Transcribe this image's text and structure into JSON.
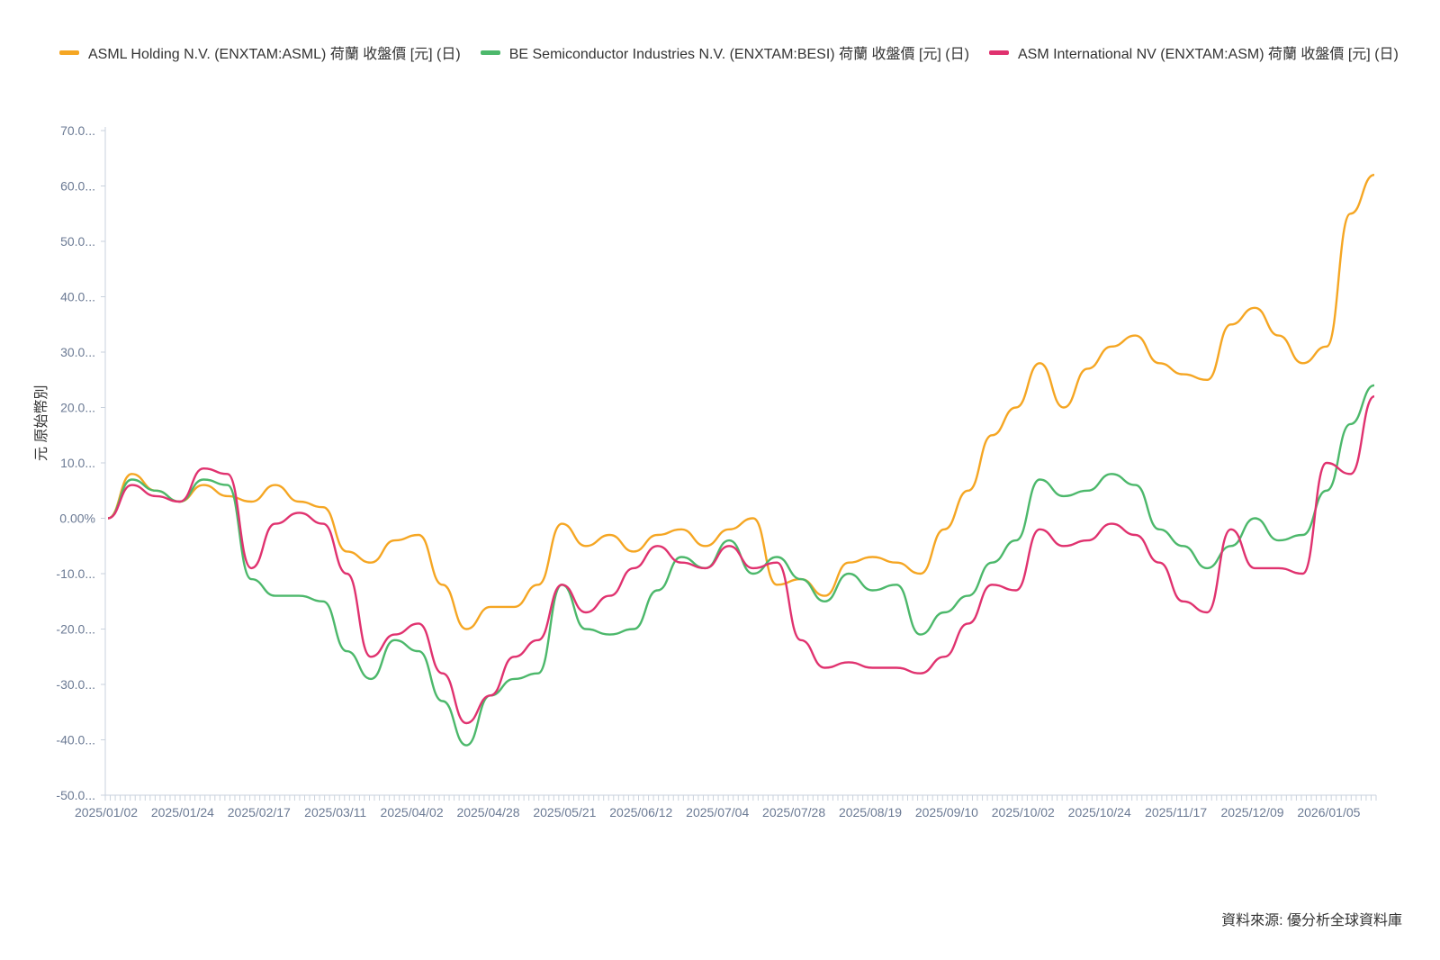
{
  "chart_data": {
    "type": "line",
    "title": "",
    "ylabel": "元 原始幣別",
    "xlabel": "",
    "ylim": [
      -50,
      70
    ],
    "yticks": [
      "70.0...",
      "60.0...",
      "50.0...",
      "40.0...",
      "30.0...",
      "20.0...",
      "10.0...",
      "0.00%",
      "-10.0...",
      "-20.0...",
      "-30.0...",
      "-40.0...",
      "-50.0..."
    ],
    "ytick_values": [
      70,
      60,
      50,
      40,
      30,
      20,
      10,
      0,
      -10,
      -20,
      -30,
      -40,
      -50
    ],
    "xticks": [
      "2025/01/02",
      "2025/01/24",
      "2025/02/17",
      "2025/03/11",
      "2025/04/02",
      "2025/04/28",
      "2025/05/21",
      "2025/06/12",
      "2025/07/04",
      "2025/07/28",
      "2025/08/19",
      "2025/09/10",
      "2025/10/02",
      "2025/10/24",
      "2025/11/17",
      "2025/12/09",
      "2026/01/05"
    ],
    "grid": false,
    "legend": "top",
    "x": [
      "2025/01/02",
      "2025/01/08",
      "2025/01/14",
      "2025/01/20",
      "2025/01/24",
      "2025/01/29",
      "2025/02/04",
      "2025/02/10",
      "2025/02/17",
      "2025/02/24",
      "2025/03/03",
      "2025/03/11",
      "2025/03/18",
      "2025/03/25",
      "2025/04/02",
      "2025/04/08",
      "2025/04/15",
      "2025/04/22",
      "2025/04/28",
      "2025/05/05",
      "2025/05/12",
      "2025/05/21",
      "2025/05/28",
      "2025/06/04",
      "2025/06/12",
      "2025/06/19",
      "2025/06/26",
      "2025/07/04",
      "2025/07/11",
      "2025/07/18",
      "2025/07/28",
      "2025/08/04",
      "2025/08/11",
      "2025/08/19",
      "2025/08/26",
      "2025/09/02",
      "2025/09/10",
      "2025/09/17",
      "2025/09/24",
      "2025/10/02",
      "2025/10/09",
      "2025/10/16",
      "2025/10/24",
      "2025/10/31",
      "2025/11/07",
      "2025/11/17",
      "2025/11/24",
      "2025/12/01",
      "2025/12/09",
      "2025/12/16",
      "2025/12/23",
      "2026/01/05",
      "2026/01/09",
      "2026/01/14"
    ],
    "series": [
      {
        "name": "ASML Holding N.V. (ENXTAM:ASML) 荷蘭 收盤價 [元] (日)",
        "color": "#f5a623",
        "values": [
          0,
          8,
          5,
          3,
          6,
          4,
          3,
          6,
          3,
          2,
          -6,
          -8,
          -4,
          -3,
          -12,
          -20,
          -16,
          -16,
          -12,
          -1,
          -5,
          -3,
          -6,
          -3,
          -2,
          -5,
          -2,
          0,
          -12,
          -11,
          -14,
          -8,
          -7,
          -8,
          -10,
          -2,
          5,
          15,
          20,
          28,
          20,
          27,
          31,
          33,
          28,
          26,
          25,
          35,
          38,
          33,
          28,
          31,
          55,
          62
        ]
      },
      {
        "name": "BE Semiconductor Industries N.V. (ENXTAM:BESI) 荷蘭 收盤價 [元] (日)",
        "color": "#4cb86b",
        "values": [
          0,
          7,
          5,
          3,
          7,
          6,
          -11,
          -14,
          -14,
          -15,
          -24,
          -29,
          -22,
          -24,
          -33,
          -41,
          -32,
          -29,
          -28,
          -12,
          -20,
          -21,
          -20,
          -13,
          -7,
          -9,
          -4,
          -10,
          -7,
          -11,
          -15,
          -10,
          -13,
          -12,
          -21,
          -17,
          -14,
          -8,
          -4,
          7,
          4,
          5,
          8,
          6,
          -2,
          -5,
          -9,
          -5,
          0,
          -4,
          -3,
          5,
          17,
          24
        ]
      },
      {
        "name": "ASM International NV (ENXTAM:ASM) 荷蘭 收盤價 [元] (日)",
        "color": "#e0326f",
        "values": [
          0,
          6,
          4,
          3,
          9,
          8,
          -9,
          -1,
          1,
          -1,
          -10,
          -25,
          -21,
          -19,
          -28,
          -37,
          -32,
          -25,
          -22,
          -12,
          -17,
          -14,
          -9,
          -5,
          -8,
          -9,
          -5,
          -9,
          -8,
          -22,
          -27,
          -26,
          -27,
          -27,
          -28,
          -25,
          -19,
          -12,
          -13,
          -2,
          -5,
          -4,
          -1,
          -3,
          -8,
          -15,
          -17,
          -2,
          -9,
          -9,
          -10,
          10,
          8,
          22
        ]
      }
    ]
  },
  "source": "資料來源: 優分析全球資料庫"
}
